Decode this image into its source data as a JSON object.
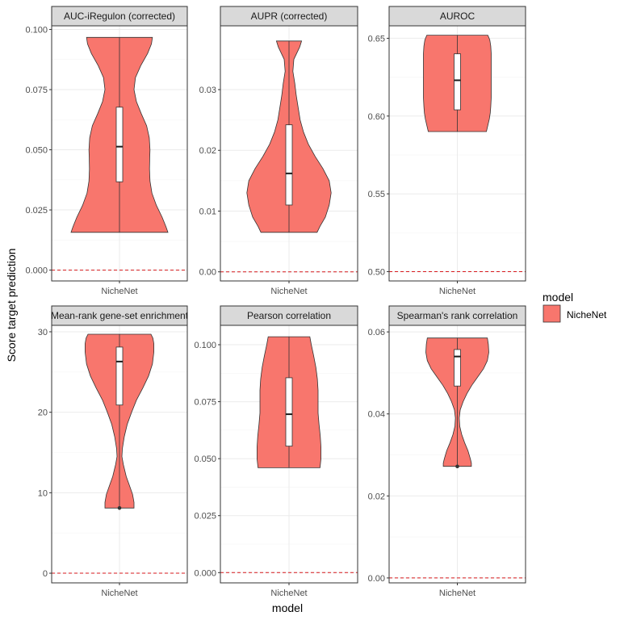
{
  "chart_data": {
    "type": "violin",
    "xlabel": "model",
    "ylabel": "Score target prediction",
    "category": "NicheNet",
    "colors": {
      "fill": "#F8766D",
      "reference_line": "#d7191c",
      "strip": "#d9d9d9",
      "grid_major": "#ebebeb",
      "grid_minor": "#f5f5f5"
    },
    "legend": {
      "title": "model",
      "entries": [
        {
          "label": "NicheNet",
          "color": "#F8766D"
        }
      ],
      "placement": "right"
    },
    "panels": [
      {
        "title": "AUC-iRegulon (corrected)",
        "yrange": [
          -0.0045,
          0.1015
        ],
        "yticks": [
          0.0,
          0.025,
          0.05,
          0.075,
          0.1
        ],
        "ytick_labels": [
          "0.000",
          "0.025",
          "0.050",
          "0.075",
          "0.100"
        ],
        "reference_line": 0.0,
        "violin": {
          "min": 0.0157,
          "max": 0.0967,
          "q1": 0.0367,
          "median": 0.0513,
          "q3": 0.0677,
          "outliers": [],
          "profile": [
            [
              0.0157,
              1.0
            ],
            [
              0.018,
              0.96
            ],
            [
              0.022,
              0.88
            ],
            [
              0.027,
              0.76
            ],
            [
              0.032,
              0.67
            ],
            [
              0.037,
              0.63
            ],
            [
              0.042,
              0.62
            ],
            [
              0.047,
              0.625
            ],
            [
              0.05,
              0.63
            ],
            [
              0.055,
              0.615
            ],
            [
              0.06,
              0.56
            ],
            [
              0.065,
              0.45
            ],
            [
              0.07,
              0.35
            ],
            [
              0.075,
              0.3
            ],
            [
              0.08,
              0.33
            ],
            [
              0.085,
              0.44
            ],
            [
              0.09,
              0.58
            ],
            [
              0.094,
              0.66
            ],
            [
              0.0967,
              0.68
            ]
          ]
        }
      },
      {
        "title": "AUPR (corrected)",
        "yrange": [
          -0.0015,
          0.0405
        ],
        "yticks": [
          0.0,
          0.01,
          0.02,
          0.03
        ],
        "ytick_labels": [
          "0.00",
          "0.01",
          "0.02",
          "0.03"
        ],
        "reference_line": 0.0,
        "violin": {
          "min": 0.0065,
          "max": 0.038,
          "q1": 0.011,
          "median": 0.0162,
          "q3": 0.0242,
          "outliers": [],
          "profile": [
            [
              0.0065,
              0.58
            ],
            [
              0.0075,
              0.64
            ],
            [
              0.009,
              0.75
            ],
            [
              0.011,
              0.83
            ],
            [
              0.013,
              0.87
            ],
            [
              0.015,
              0.83
            ],
            [
              0.017,
              0.7
            ],
            [
              0.019,
              0.54
            ],
            [
              0.021,
              0.4
            ],
            [
              0.023,
              0.3
            ],
            [
              0.025,
              0.23
            ],
            [
              0.027,
              0.19
            ],
            [
              0.029,
              0.15
            ],
            [
              0.031,
              0.12
            ],
            [
              0.033,
              0.08
            ],
            [
              0.035,
              0.1
            ],
            [
              0.037,
              0.22
            ],
            [
              0.038,
              0.26
            ]
          ]
        }
      },
      {
        "title": "AUROC",
        "yrange": [
          0.494,
          0.658
        ],
        "yticks": [
          0.5,
          0.55,
          0.6,
          0.65
        ],
        "ytick_labels": [
          "0.50",
          "0.55",
          "0.60",
          "0.65"
        ],
        "reference_line": 0.5,
        "violin": {
          "min": 0.59,
          "max": 0.652,
          "q1": 0.604,
          "median": 0.623,
          "q3": 0.64,
          "outliers": [],
          "profile": [
            [
              0.59,
              0.6
            ],
            [
              0.594,
              0.63
            ],
            [
              0.598,
              0.66
            ],
            [
              0.602,
              0.68
            ],
            [
              0.606,
              0.69
            ],
            [
              0.612,
              0.7
            ],
            [
              0.62,
              0.7
            ],
            [
              0.628,
              0.7
            ],
            [
              0.634,
              0.7
            ],
            [
              0.64,
              0.7
            ],
            [
              0.645,
              0.69
            ],
            [
              0.649,
              0.67
            ],
            [
              0.652,
              0.63
            ]
          ]
        }
      },
      {
        "title": "Mean-rank gene-set enrichment",
        "yrange": [
          -1.2,
          30.8
        ],
        "yticks": [
          0,
          10,
          20,
          30
        ],
        "ytick_labels": [
          "0",
          "10",
          "20",
          "30"
        ],
        "reference_line": 0,
        "violin": {
          "min": 8.1,
          "max": 29.7,
          "q1": 20.9,
          "median": 26.3,
          "q3": 28.1,
          "outliers": [
            8.1
          ],
          "profile": [
            [
              8.1,
              0.3
            ],
            [
              8.8,
              0.3
            ],
            [
              9.8,
              0.27
            ],
            [
              11,
              0.2
            ],
            [
              12,
              0.14
            ],
            [
              13.5,
              0.08
            ],
            [
              14.5,
              0.05
            ],
            [
              15.5,
              0.06
            ],
            [
              17,
              0.1
            ],
            [
              18.5,
              0.16
            ],
            [
              20,
              0.25
            ],
            [
              21.5,
              0.35
            ],
            [
              23,
              0.48
            ],
            [
              24.5,
              0.6
            ],
            [
              26,
              0.68
            ],
            [
              27.5,
              0.71
            ],
            [
              28.5,
              0.71
            ],
            [
              29.2,
              0.69
            ],
            [
              29.7,
              0.65
            ]
          ]
        }
      },
      {
        "title": "Pearson correlation",
        "yrange": [
          -0.0045,
          0.1085
        ],
        "yticks": [
          0.0,
          0.025,
          0.05,
          0.075,
          0.1
        ],
        "ytick_labels": [
          "0.000",
          "0.025",
          "0.050",
          "0.075",
          "0.100"
        ],
        "reference_line": 0.0,
        "violin": {
          "min": 0.046,
          "max": 0.1035,
          "q1": 0.0555,
          "median": 0.0695,
          "q3": 0.0855,
          "outliers": [],
          "profile": [
            [
              0.046,
              0.64
            ],
            [
              0.05,
              0.66
            ],
            [
              0.055,
              0.66
            ],
            [
              0.06,
              0.645
            ],
            [
              0.065,
              0.62
            ],
            [
              0.07,
              0.6
            ],
            [
              0.075,
              0.6
            ],
            [
              0.08,
              0.6
            ],
            [
              0.085,
              0.585
            ],
            [
              0.09,
              0.555
            ],
            [
              0.095,
              0.51
            ],
            [
              0.1,
              0.46
            ],
            [
              0.1035,
              0.43
            ]
          ]
        }
      },
      {
        "title": "Spearman's rank correlation",
        "yrange": [
          -0.0012,
          0.0616
        ],
        "yticks": [
          0.0,
          0.02,
          0.04,
          0.06
        ],
        "ytick_labels": [
          "0.00",
          "0.02",
          "0.04",
          "0.06"
        ],
        "reference_line": 0.0,
        "violin": {
          "min": 0.0272,
          "max": 0.0585,
          "q1": 0.0468,
          "median": 0.054,
          "q3": 0.0557,
          "outliers": [
            0.0272
          ],
          "profile": [
            [
              0.0272,
              0.29
            ],
            [
              0.028,
              0.29
            ],
            [
              0.029,
              0.27
            ],
            [
              0.031,
              0.22
            ],
            [
              0.033,
              0.15
            ],
            [
              0.035,
              0.09
            ],
            [
              0.037,
              0.05
            ],
            [
              0.039,
              0.04
            ],
            [
              0.041,
              0.06
            ],
            [
              0.043,
              0.12
            ],
            [
              0.045,
              0.2
            ],
            [
              0.047,
              0.3
            ],
            [
              0.049,
              0.42
            ],
            [
              0.051,
              0.54
            ],
            [
              0.053,
              0.62
            ],
            [
              0.055,
              0.65
            ],
            [
              0.057,
              0.64
            ],
            [
              0.0585,
              0.62
            ]
          ]
        }
      }
    ]
  }
}
